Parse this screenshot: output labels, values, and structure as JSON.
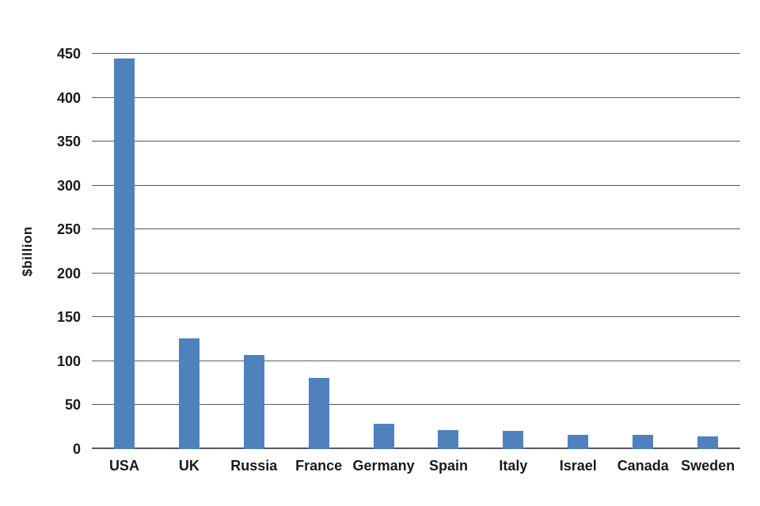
{
  "chart_data": {
    "type": "bar",
    "title": "",
    "categories": [
      "USA",
      "UK",
      "Russia",
      "France",
      "Germany",
      "Spain",
      "Italy",
      "Israel",
      "Canada",
      "Sweden"
    ],
    "values": [
      445,
      126,
      107,
      81,
      29,
      22,
      21,
      16,
      16,
      14
    ],
    "xlabel": "",
    "ylabel": "$billion",
    "ylim": [
      0,
      450
    ],
    "ytick_step": 50,
    "ytick_labels": [
      "0",
      "50",
      "100",
      "150",
      "200",
      "250",
      "300",
      "350",
      "400",
      "450"
    ],
    "grid": true,
    "legend_position": "none",
    "bar_color": "#4f81bd",
    "gridline_color": "#595959",
    "text_color": "#1a1a1a",
    "background_color": "#ffffff"
  }
}
